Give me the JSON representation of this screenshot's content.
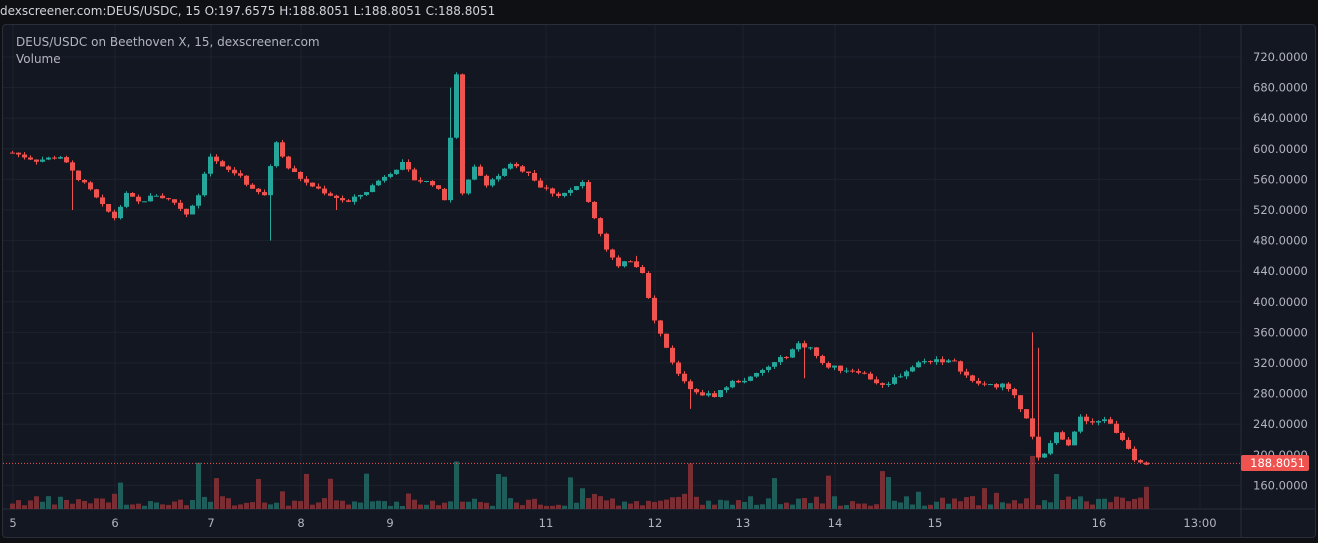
{
  "header": {
    "symbol": "dexscreener.com:DEUS/USDC, 15",
    "open_label": "O:",
    "open": "197.6575",
    "high_label": "H:",
    "high": "188.8051",
    "low_label": "L:",
    "low": "188.8051",
    "close_label": "C:",
    "close": "188.8051"
  },
  "legend": {
    "title": "DEUS/USDC on Beethoven X, 15, dexscreener.com",
    "volume": "Volume"
  },
  "last_price": "188.8051",
  "colors": {
    "up": "#26a69a",
    "down": "#ef5350",
    "vol_up": "#1f5d5a",
    "vol_down": "#7a2e33"
  },
  "chart_data": {
    "type": "candlestick",
    "y_ticks": [
      "720.0000",
      "680.0000",
      "640.0000",
      "600.0000",
      "560.0000",
      "520.0000",
      "480.0000",
      "440.0000",
      "400.0000",
      "360.0000",
      "320.0000",
      "280.0000",
      "240.0000",
      "200.0000",
      "160.0000"
    ],
    "x_ticks": [
      "5",
      "6",
      "7",
      "8",
      "9",
      "11",
      "12",
      "13",
      "14",
      "15",
      "16",
      "13:00"
    ],
    "ylim": [
      110,
      740
    ],
    "path": [
      [
        0,
        595
      ],
      [
        4,
        585
      ],
      [
        8,
        590
      ],
      [
        10,
        570
      ],
      [
        13,
        545
      ],
      [
        15,
        525
      ],
      [
        17,
        510
      ],
      [
        19,
        540
      ],
      [
        21,
        530
      ],
      [
        24,
        540
      ],
      [
        27,
        530
      ],
      [
        29,
        515
      ],
      [
        31,
        540
      ],
      [
        33,
        590
      ],
      [
        35,
        575
      ],
      [
        38,
        565
      ],
      [
        40,
        545
      ],
      [
        42,
        540
      ],
      [
        44,
        610
      ],
      [
        46,
        575
      ],
      [
        49,
        555
      ],
      [
        53,
        540
      ],
      [
        56,
        530
      ],
      [
        59,
        545
      ],
      [
        62,
        565
      ],
      [
        65,
        580
      ],
      [
        67,
        560
      ],
      [
        70,
        555
      ],
      [
        72,
        535
      ],
      [
        74,
        695
      ],
      [
        75,
        540
      ],
      [
        77,
        575
      ],
      [
        79,
        555
      ],
      [
        81,
        565
      ],
      [
        83,
        578
      ],
      [
        86,
        570
      ],
      [
        88,
        550
      ],
      [
        91,
        540
      ],
      [
        93,
        545
      ],
      [
        95,
        555
      ],
      [
        97,
        510
      ],
      [
        99,
        470
      ],
      [
        101,
        445
      ],
      [
        103,
        455
      ],
      [
        105,
        440
      ],
      [
        107,
        375
      ],
      [
        109,
        340
      ],
      [
        111,
        305
      ],
      [
        114,
        280
      ],
      [
        117,
        278
      ],
      [
        120,
        295
      ],
      [
        123,
        300
      ],
      [
        126,
        315
      ],
      [
        129,
        330
      ],
      [
        131,
        345
      ],
      [
        133,
        340
      ],
      [
        135,
        318
      ],
      [
        138,
        312
      ],
      [
        141,
        310
      ],
      [
        143,
        300
      ],
      [
        145,
        290
      ],
      [
        148,
        305
      ],
      [
        151,
        320
      ],
      [
        154,
        325
      ],
      [
        157,
        320
      ],
      [
        160,
        295
      ],
      [
        163,
        290
      ],
      [
        165,
        292
      ],
      [
        167,
        275
      ],
      [
        169,
        250
      ],
      [
        171,
        195
      ],
      [
        172,
        200
      ],
      [
        174,
        230
      ],
      [
        176,
        215
      ],
      [
        178,
        248
      ],
      [
        180,
        240
      ],
      [
        182,
        248
      ],
      [
        184,
        230
      ],
      [
        186,
        210
      ],
      [
        187,
        195
      ],
      [
        189,
        190
      ]
    ],
    "spikes": [
      [
        10,
        520
      ],
      [
        43,
        480
      ],
      [
        54,
        520
      ],
      [
        73,
        680
      ],
      [
        104,
        460
      ],
      [
        113,
        260
      ],
      [
        132,
        300
      ],
      [
        170,
        360
      ],
      [
        171,
        340
      ]
    ]
  }
}
